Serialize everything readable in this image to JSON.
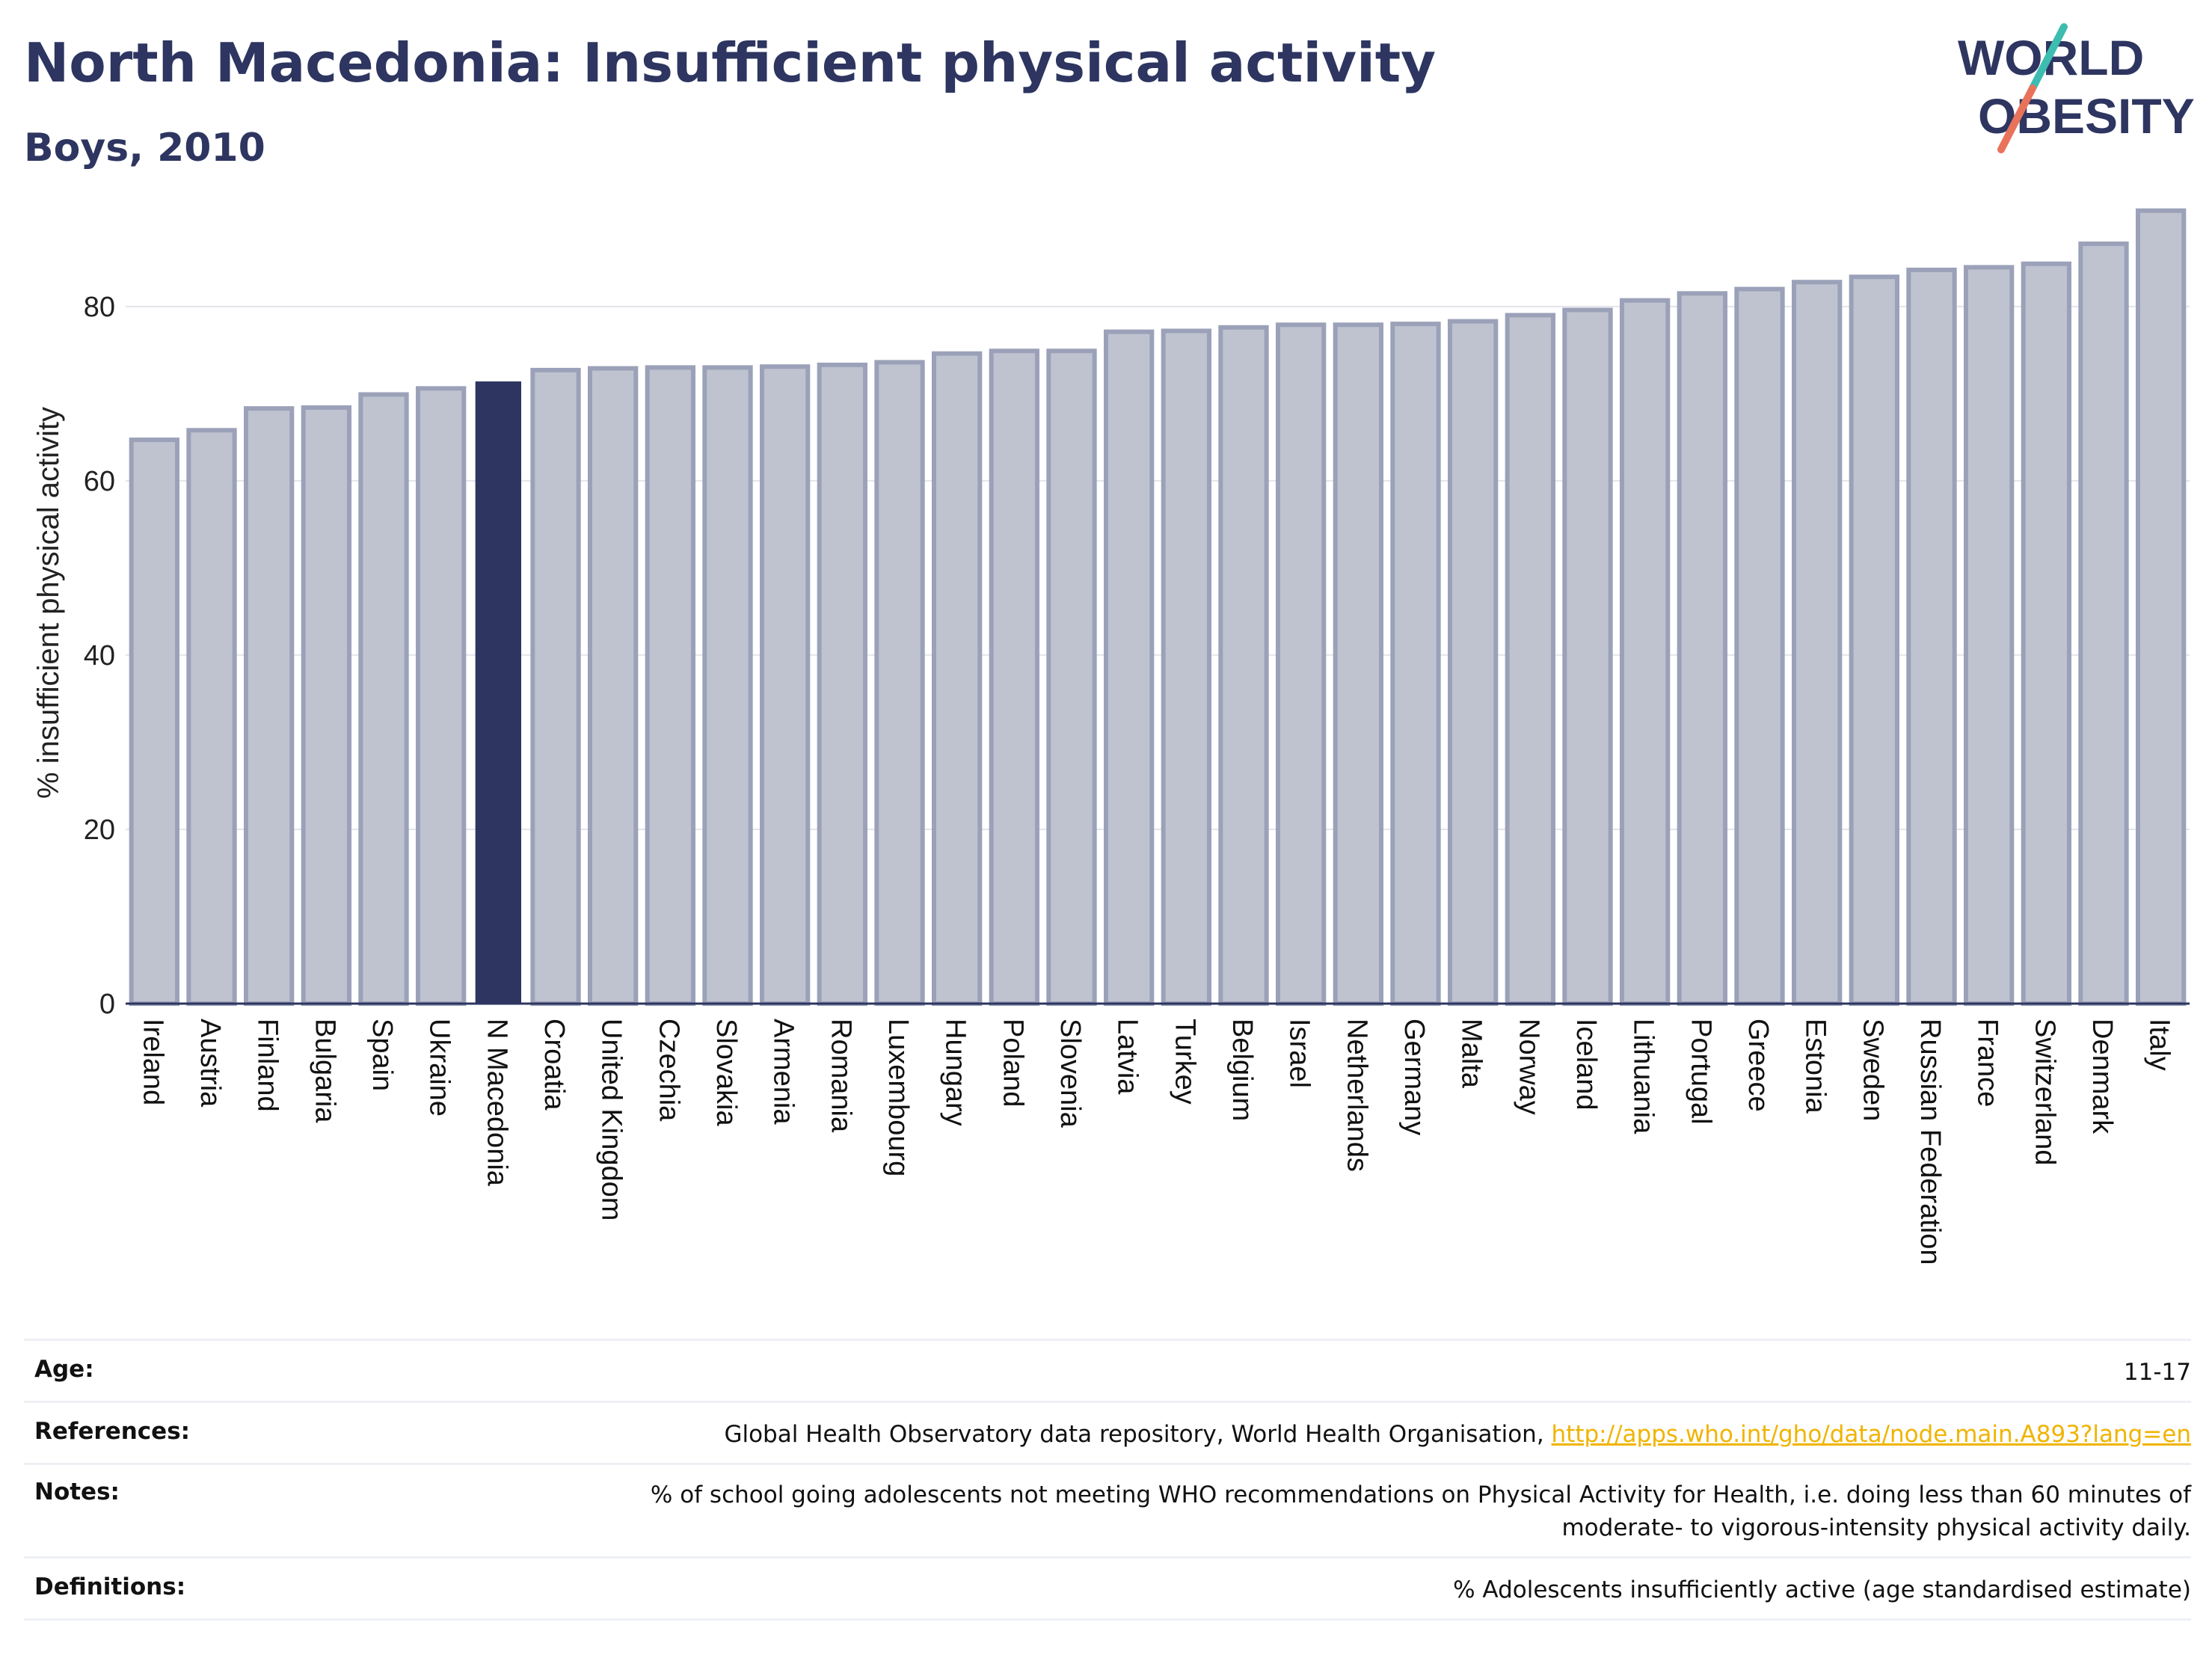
{
  "header": {
    "title": "North Macedonia: Insufficient physical activity",
    "subtitle": "Boys, 2010",
    "logo_line1": "WORLD",
    "logo_line2": "OBESITY"
  },
  "colors": {
    "highlight_bar": "#2d3560",
    "other_bar_fill": "#bfc3d0",
    "other_bar_border": "#9ba1b8",
    "title": "#2d3560",
    "logo_teal": "#3dbcb0",
    "logo_coral": "#e8735a",
    "link": "#f0b400"
  },
  "chart_data": {
    "type": "bar",
    "title": "North Macedonia: Insufficient physical activity",
    "subtitle": "Boys, 2010",
    "ylabel": "% insufficient physical activity",
    "xlabel": "",
    "ylim": [
      0,
      92
    ],
    "yticks": [
      0,
      20,
      40,
      60,
      80
    ],
    "grid": true,
    "legend": "none",
    "highlight": "N Macedonia",
    "categories": [
      "Ireland",
      "Austria",
      "Finland",
      "Bulgaria",
      "Spain",
      "Ukraine",
      "N Macedonia",
      "Croatia",
      "United Kingdom",
      "Czechia",
      "Slovakia",
      "Armenia",
      "Romania",
      "Luxembourg",
      "Hungary",
      "Poland",
      "Slovenia",
      "Latvia",
      "Turkey",
      "Belgium",
      "Israel",
      "Netherlands",
      "Germany",
      "Malta",
      "Norway",
      "Iceland",
      "Lithuania",
      "Portugal",
      "Greece",
      "Estonia",
      "Sweden",
      "Russian Federation",
      "France",
      "Switzerland",
      "Denmark",
      "Italy"
    ],
    "values": [
      64.7,
      65.8,
      68.3,
      68.4,
      69.9,
      70.6,
      71.4,
      72.7,
      72.9,
      73.0,
      73.0,
      73.1,
      73.3,
      73.6,
      74.6,
      74.9,
      74.9,
      77.1,
      77.2,
      77.6,
      77.9,
      77.9,
      78.0,
      78.3,
      79.0,
      79.6,
      80.7,
      81.5,
      82.0,
      82.8,
      83.4,
      84.2,
      84.5,
      84.9,
      87.2,
      91.0
    ]
  },
  "meta": {
    "age_label": "Age:",
    "age_value": "11-17",
    "references_label": "References:",
    "references_text": "Global Health Observatory data repository, World Health Organisation, ",
    "references_link": "http://apps.who.int/gho/data/node.main.A893?lang=en",
    "notes_label": "Notes:",
    "notes_value": "% of school going adolescents not meeting WHO recommendations on Physical Activity for Health, i.e. doing less than 60 minutes of moderate- to vigorous-intensity physical activity daily.",
    "definitions_label": "Definitions:",
    "definitions_value": "% Adolescents insufficiently active (age standardised estimate)"
  }
}
